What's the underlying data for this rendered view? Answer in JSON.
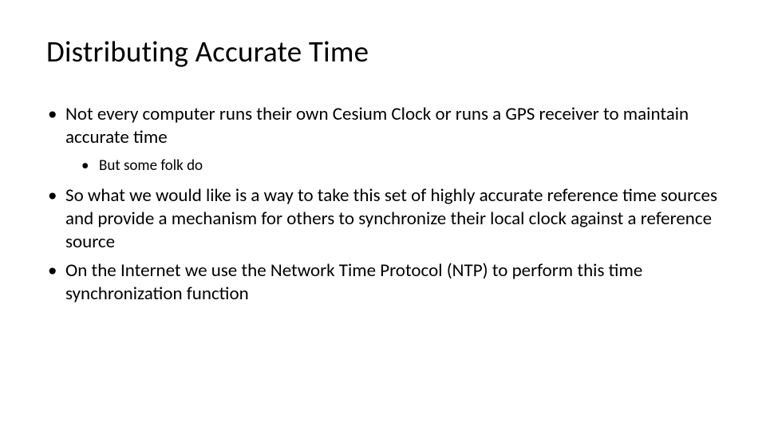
{
  "slide": {
    "title": "Distributing Accurate Time",
    "bullets": [
      {
        "text": "Not every computer runs their own Cesium Clock or runs a GPS receiver to maintain accurate time",
        "sub": [
          {
            "text": "But some folk do"
          }
        ]
      },
      {
        "text": "So what we would like is a way to take this set of highly accurate reference time sources and provide a mechanism for others to synchronize their local clock against a reference source"
      },
      {
        "text": "On the Internet we use the Network Time Protocol (NTP) to perform this time synchronization function"
      }
    ]
  },
  "style": {
    "background_color": "#ffffff",
    "text_color": "#000000",
    "title_fontsize": 37,
    "bullet_fontsize": 23,
    "subbullet_fontsize": 19,
    "font_family": "Calibri"
  }
}
